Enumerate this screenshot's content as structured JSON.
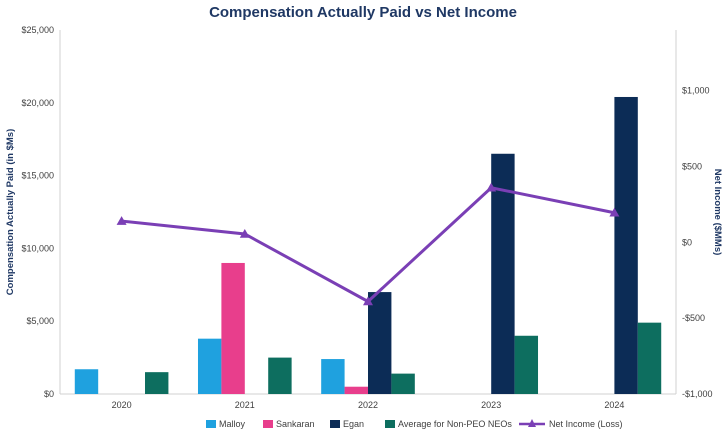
{
  "chart_data": {
    "type": "bar",
    "title": "Compensation Actually Paid vs Net Income",
    "categories": [
      "2020",
      "2021",
      "2022",
      "2023",
      "2024"
    ],
    "xlabel": "",
    "ylabel": "Compensation Actually Paid (in $Ms)",
    "y2label": "Net Income ($MMs)",
    "ylim": [
      0,
      25000
    ],
    "y2lim": [
      -1000,
      1400
    ],
    "y_ticks": [
      0,
      5000,
      10000,
      15000,
      20000,
      25000
    ],
    "y_tick_labels": [
      "$0",
      "$5,000",
      "$10,000",
      "$15,000",
      "$20,000",
      "$25,000"
    ],
    "y2_ticks": [
      -1000,
      -500,
      0,
      500,
      1000
    ],
    "y2_tick_labels": [
      "-$1,000",
      "-$500",
      "$0",
      "$500",
      "$1,000"
    ],
    "grid": false,
    "legend_position": "bottom",
    "series": [
      {
        "name": "Malloy",
        "type": "bar",
        "axis": "left",
        "color": "#1fa1df",
        "values": [
          1700,
          3800,
          2400,
          null,
          null
        ]
      },
      {
        "name": "Sankaran",
        "type": "bar",
        "axis": "left",
        "color": "#e83e8c",
        "values": [
          null,
          9000,
          500,
          null,
          null
        ]
      },
      {
        "name": "Egan",
        "type": "bar",
        "axis": "left",
        "color": "#0c2c56",
        "values": [
          null,
          null,
          7000,
          16500,
          20400
        ]
      },
      {
        "name": "Average for Non-PEO NEOs",
        "type": "bar",
        "axis": "left",
        "color": "#0d6e5f",
        "values": [
          1500,
          2500,
          1400,
          4000,
          4900
        ]
      },
      {
        "name": "Net Income (Loss)",
        "type": "line",
        "axis": "right",
        "color": "#7a3fb5",
        "marker": "triangle",
        "values": [
          140,
          55,
          -390,
          360,
          195
        ]
      }
    ]
  }
}
